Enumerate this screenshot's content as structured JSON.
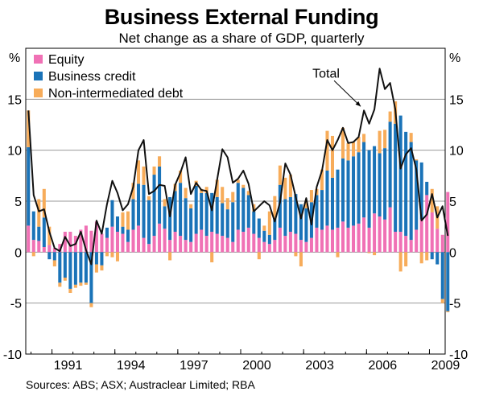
{
  "chart_data": {
    "type": "bar",
    "title": "Business External Funding",
    "subtitle": "Net change as a share of GDP, quarterly",
    "unit_left": "%",
    "unit_right": "%",
    "ylim": [
      -10,
      20
    ],
    "yticks": [
      -10,
      -5,
      0,
      5,
      10,
      15
    ],
    "x_start": 1989.75,
    "x_end": 2009.75,
    "xticks": [
      {
        "label": "1991",
        "year": 1991
      },
      {
        "label": "1994",
        "year": 1994
      },
      {
        "label": "1997",
        "year": 1997
      },
      {
        "label": "2000",
        "year": 2000
      },
      {
        "label": "2003",
        "year": 2003
      },
      {
        "label": "2006",
        "year": 2006
      },
      {
        "label": "2009",
        "year": 2009
      }
    ],
    "first_quarter_start": 1989.75,
    "quarter_width": 0.25,
    "series": [
      {
        "name": "Equity",
        "color": "#f071b5",
        "values": [
          2.6,
          1.2,
          1.1,
          0.5,
          0.7,
          0.4,
          0.8,
          2.0,
          2.0,
          1.6,
          2.2,
          2.6,
          2.1,
          3.0,
          1.8,
          1.4,
          2.5,
          2.0,
          1.8,
          1.0,
          2.2,
          2.6,
          1.4,
          0.8,
          1.6,
          2.8,
          2.3,
          1.2,
          2.0,
          1.6,
          1.2,
          1.0,
          1.8,
          2.2,
          1.6,
          2.0,
          1.8,
          1.6,
          1.4,
          1.0,
          2.2,
          2.0,
          2.4,
          1.8,
          1.4,
          1.0,
          0.8,
          1.2,
          2.4,
          1.6,
          2.0,
          1.8,
          1.2,
          1.0,
          1.4,
          2.4,
          2.2,
          2.6,
          2.2,
          2.4,
          3.0,
          2.4,
          2.6,
          2.8,
          3.4,
          2.4,
          3.8,
          3.5,
          3.2,
          4.4,
          2.0,
          2.0,
          1.6,
          1.2,
          2.2,
          3.2,
          5.6,
          3.9,
          2.3,
          1.7,
          5.9
        ]
      },
      {
        "name": "Business credit",
        "color": "#1a73b8",
        "values": [
          7.7,
          2.8,
          1.4,
          2.9,
          -0.7,
          -0.8,
          -3.0,
          -2.5,
          -3.6,
          -3.2,
          -3.0,
          -3.0,
          -5.0,
          -1.2,
          -1.3,
          1.0,
          2.6,
          1.5,
          0.7,
          1.2,
          3.0,
          4.1,
          5.2,
          4.3,
          6.0,
          5.6,
          2.2,
          4.2,
          4.0,
          5.2,
          4.1,
          3.3,
          4.7,
          3.6,
          4.2,
          3.8,
          3.6,
          3.2,
          2.8,
          3.9,
          4.6,
          4.3,
          3.2,
          2.2,
          1.9,
          1.1,
          0.9,
          2.1,
          4.2,
          3.6,
          3.4,
          3.9,
          3.5,
          3.3,
          3.5,
          3.2,
          3.9,
          5.4,
          5.1,
          5.7,
          6.2,
          6.6,
          6.8,
          7.0,
          7.4,
          7.6,
          6.6,
          6.2,
          7.0,
          8.4,
          10.6,
          11.4,
          10.2,
          9.6,
          6.8,
          5.6,
          1.3,
          -0.7,
          -1.2,
          -4.6,
          -5.8
        ]
      },
      {
        "name": "Non-intermediated debt",
        "color": "#f7ac5a",
        "values": [
          3.6,
          -0.4,
          2.7,
          2.8,
          1.8,
          -0.6,
          -0.4,
          -0.3,
          -0.4,
          -0.3,
          -0.3,
          -0.2,
          -0.4,
          -0.8,
          -0.5,
          -0.4,
          -0.5,
          -0.9,
          1.4,
          1.8,
          1.6,
          2.3,
          1.8,
          0.4,
          0.8,
          1.0,
          0.7,
          -0.8,
          0.7,
          1.2,
          1.0,
          0.4,
          0.5,
          0.4,
          0.6,
          -1.0,
          1.7,
          1.6,
          1.1,
          1.0,
          0.3,
          0.3,
          0.4,
          0.7,
          -0.7,
          0.5,
          2.3,
          2.2,
          1.9,
          2.1,
          2.2,
          -0.4,
          -1.4,
          0.7,
          1.2,
          0.6,
          2.0,
          3.9,
          4.1,
          -0.5,
          3.0,
          1.7,
          1.4,
          1.5,
          0.8,
          -0.1,
          -0.3,
          2.2,
          1.8,
          1.0,
          2.2,
          -1.9,
          -1.4,
          0.9,
          0.1,
          -1.1,
          -0.8,
          2.3,
          2.2,
          -0.4,
          -0.1
        ]
      }
    ],
    "total_values": [
      13.9,
      5.6,
      4.0,
      4.2,
      2.0,
      0.4,
      0.1,
      1.5,
      0.6,
      0.8,
      2.0,
      0.2,
      -1.2,
      3.1,
      1.8,
      4.7,
      7.0,
      5.8,
      4.1,
      4.7,
      6.4,
      10.0,
      11.0,
      5.7,
      6.0,
      6.6,
      6.5,
      3.5,
      6.6,
      7.8,
      9.3,
      5.7,
      6.8,
      6.1,
      6.0,
      4.1,
      7.1,
      10.1,
      9.3,
      6.8,
      7.2,
      8.0,
      6.7,
      4.0,
      4.5,
      5.0,
      4.6,
      3.0,
      4.9,
      8.7,
      7.6,
      5.4,
      3.3,
      5.3,
      2.7,
      6.4,
      8.0,
      11.0,
      10.0,
      11.0,
      12.2,
      10.7,
      10.8,
      11.3,
      13.9,
      12.6,
      14.0,
      18.0,
      16.0,
      16.6,
      14.0,
      8.2,
      9.6,
      10.2,
      8.1,
      3.1,
      3.7,
      5.7,
      3.4,
      4.5,
      1.6
    ],
    "annotation": {
      "text": "Total",
      "target_index": 64
    }
  },
  "source_note": "Sources: ABS; ASX; Austraclear Limited; RBA"
}
